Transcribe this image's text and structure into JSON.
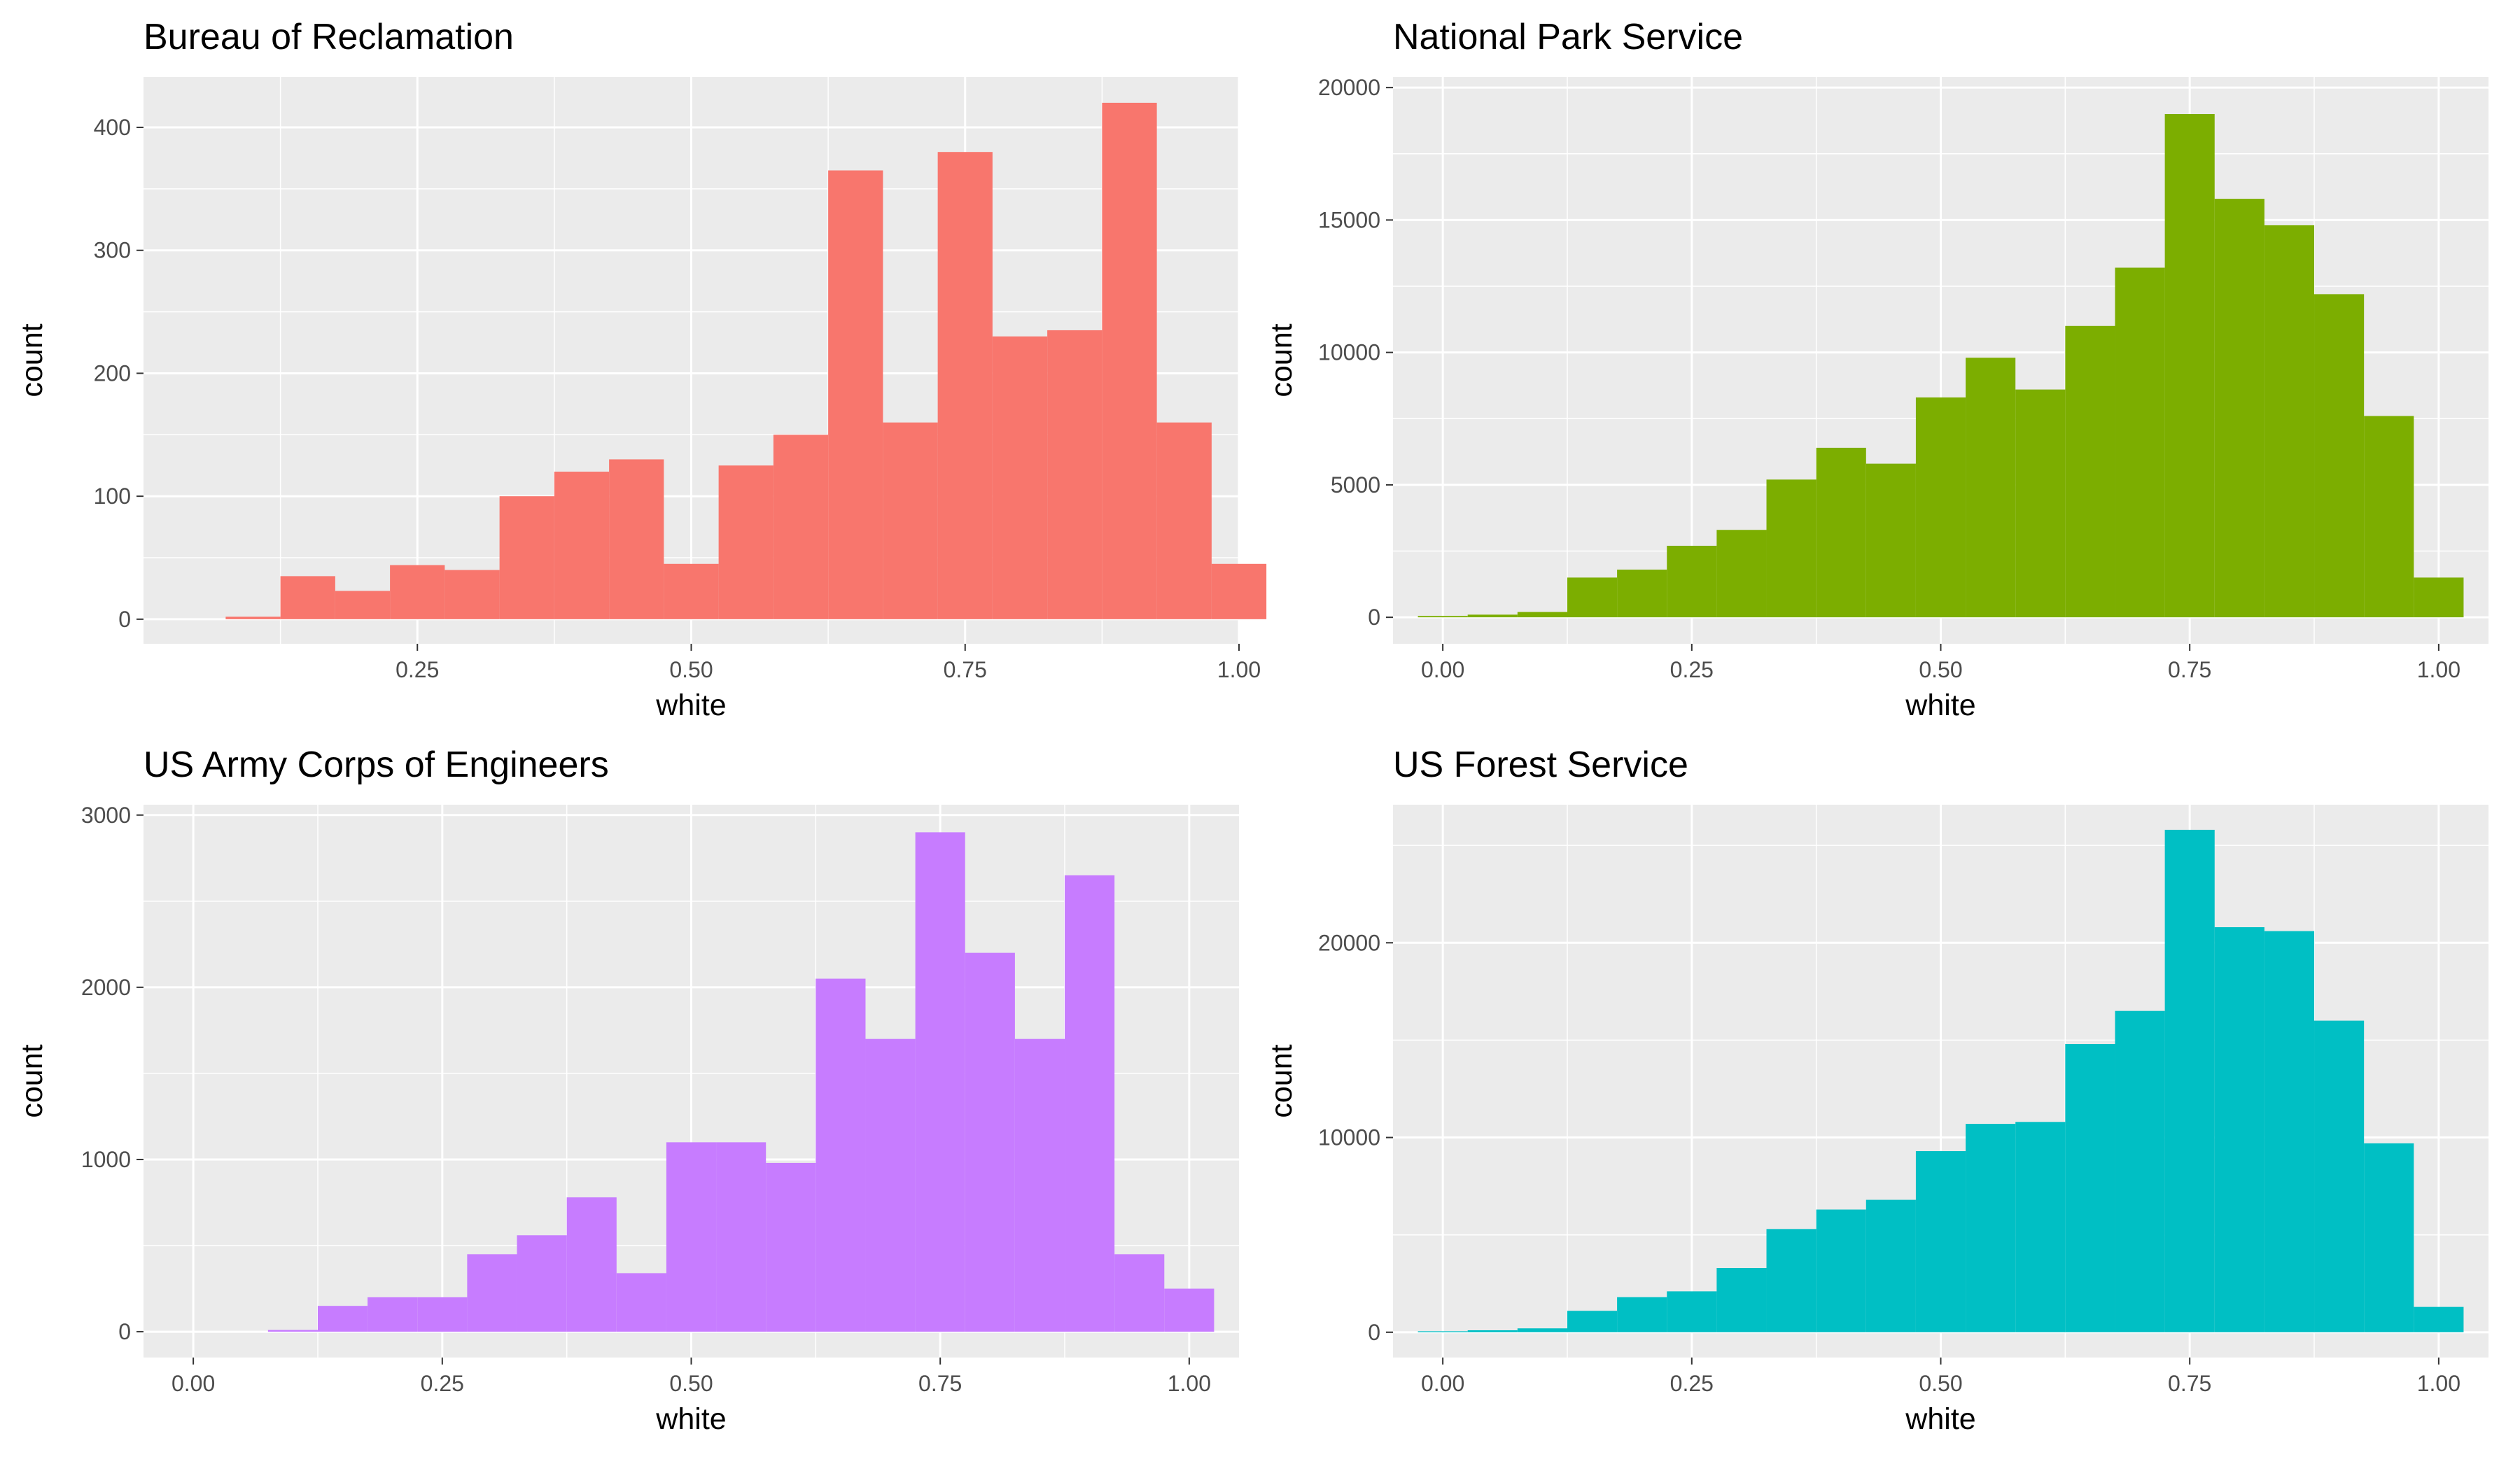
{
  "figure": {
    "background": "#ffffff",
    "panel_background": "#ebebeb",
    "grid_color": "#ffffff",
    "tick_color": "#333333"
  },
  "chart_data": [
    {
      "type": "histogram",
      "title": "Bureau of Reclamation",
      "xlabel": "white",
      "ylabel": "count",
      "color": "#f8766d",
      "bin_width": 0.05,
      "bin_centers": [
        0.1,
        0.15,
        0.2,
        0.25,
        0.3,
        0.35,
        0.4,
        0.45,
        0.5,
        0.55,
        0.6,
        0.65,
        0.7,
        0.75,
        0.8,
        0.85,
        0.9,
        0.95,
        1.0
      ],
      "counts": [
        2,
        35,
        23,
        44,
        40,
        100,
        120,
        130,
        45,
        125,
        150,
        365,
        160,
        380,
        230,
        235,
        420,
        160,
        45
      ],
      "xticks": [
        "0.25",
        "0.50",
        "0.75",
        "1.00"
      ],
      "xtick_values": [
        0.25,
        0.5,
        0.75,
        1.0
      ],
      "yticks": [
        "0",
        "100",
        "200",
        "300",
        "400"
      ],
      "ytick_values": [
        0,
        100,
        200,
        300,
        400
      ],
      "xlim": [
        0.0,
        1.0
      ],
      "ylim": [
        0,
        400
      ],
      "grid": true,
      "legend": "none"
    },
    {
      "type": "histogram",
      "title": "National Park Service",
      "xlabel": "white",
      "ylabel": "count",
      "color": "#7cae00",
      "bin_width": 0.05,
      "bin_centers": [
        0.0,
        0.05,
        0.1,
        0.15,
        0.2,
        0.25,
        0.3,
        0.35,
        0.4,
        0.45,
        0.5,
        0.55,
        0.6,
        0.65,
        0.7,
        0.75,
        0.8,
        0.85,
        0.9,
        0.95,
        1.0
      ],
      "counts": [
        50,
        100,
        200,
        1500,
        1800,
        2700,
        3300,
        5200,
        6400,
        5800,
        8300,
        9800,
        8600,
        11000,
        13200,
        19000,
        15800,
        14800,
        12200,
        7600,
        1500
      ],
      "xticks": [
        "0.00",
        "0.25",
        "0.50",
        "0.75",
        "1.00"
      ],
      "xtick_values": [
        0.0,
        0.25,
        0.5,
        0.75,
        1.0
      ],
      "yticks": [
        "0",
        "5000",
        "10000",
        "15000",
        "20000"
      ],
      "ytick_values": [
        0,
        5000,
        10000,
        15000,
        20000
      ],
      "xlim": [
        -0.05,
        1.05
      ],
      "ylim": [
        0,
        20000
      ],
      "grid": true,
      "legend": "none"
    },
    {
      "type": "histogram",
      "title": "US Army Corps of Engineers",
      "xlabel": "white",
      "ylabel": "count",
      "color": "#c77cff",
      "bin_width": 0.05,
      "bin_centers": [
        0.1,
        0.15,
        0.2,
        0.25,
        0.3,
        0.35,
        0.4,
        0.45,
        0.5,
        0.55,
        0.6,
        0.65,
        0.7,
        0.75,
        0.8,
        0.85,
        0.9,
        0.95,
        1.0
      ],
      "counts": [
        10,
        150,
        200,
        200,
        450,
        560,
        780,
        340,
        1100,
        1100,
        980,
        2050,
        1700,
        2900,
        2200,
        1700,
        2650,
        450,
        250
      ],
      "xticks": [
        "0.00",
        "0.25",
        "0.50",
        "0.75",
        "1.00"
      ],
      "xtick_values": [
        0.0,
        0.25,
        0.5,
        0.75,
        1.0
      ],
      "yticks": [
        "0",
        "1000",
        "2000",
        "3000"
      ],
      "ytick_values": [
        0,
        1000,
        2000,
        3000
      ],
      "xlim": [
        -0.05,
        1.05
      ],
      "ylim": [
        0,
        3000
      ],
      "grid": true,
      "legend": "none"
    },
    {
      "type": "histogram",
      "title": "US Forest Service",
      "xlabel": "white",
      "ylabel": "count",
      "color": "#00bfc4",
      "bin_width": 0.05,
      "bin_centers": [
        0.0,
        0.05,
        0.1,
        0.15,
        0.2,
        0.25,
        0.3,
        0.35,
        0.4,
        0.45,
        0.5,
        0.55,
        0.6,
        0.65,
        0.7,
        0.75,
        0.8,
        0.85,
        0.9,
        0.95,
        1.0
      ],
      "counts": [
        50,
        100,
        200,
        1100,
        1800,
        2100,
        3300,
        5300,
        6300,
        6800,
        9300,
        10700,
        10800,
        14800,
        16500,
        25800,
        20800,
        20600,
        16000,
        9700,
        1300
      ],
      "xticks": [
        "0.00",
        "0.25",
        "0.50",
        "0.75",
        "1.00"
      ],
      "xtick_values": [
        0.0,
        0.25,
        0.5,
        0.75,
        1.0
      ],
      "yticks": [
        "0",
        "10000",
        "20000"
      ],
      "ytick_values": [
        0,
        10000,
        20000
      ],
      "xlim": [
        -0.05,
        1.05
      ],
      "ylim": [
        0,
        26000
      ],
      "grid": true,
      "legend": "none"
    }
  ]
}
